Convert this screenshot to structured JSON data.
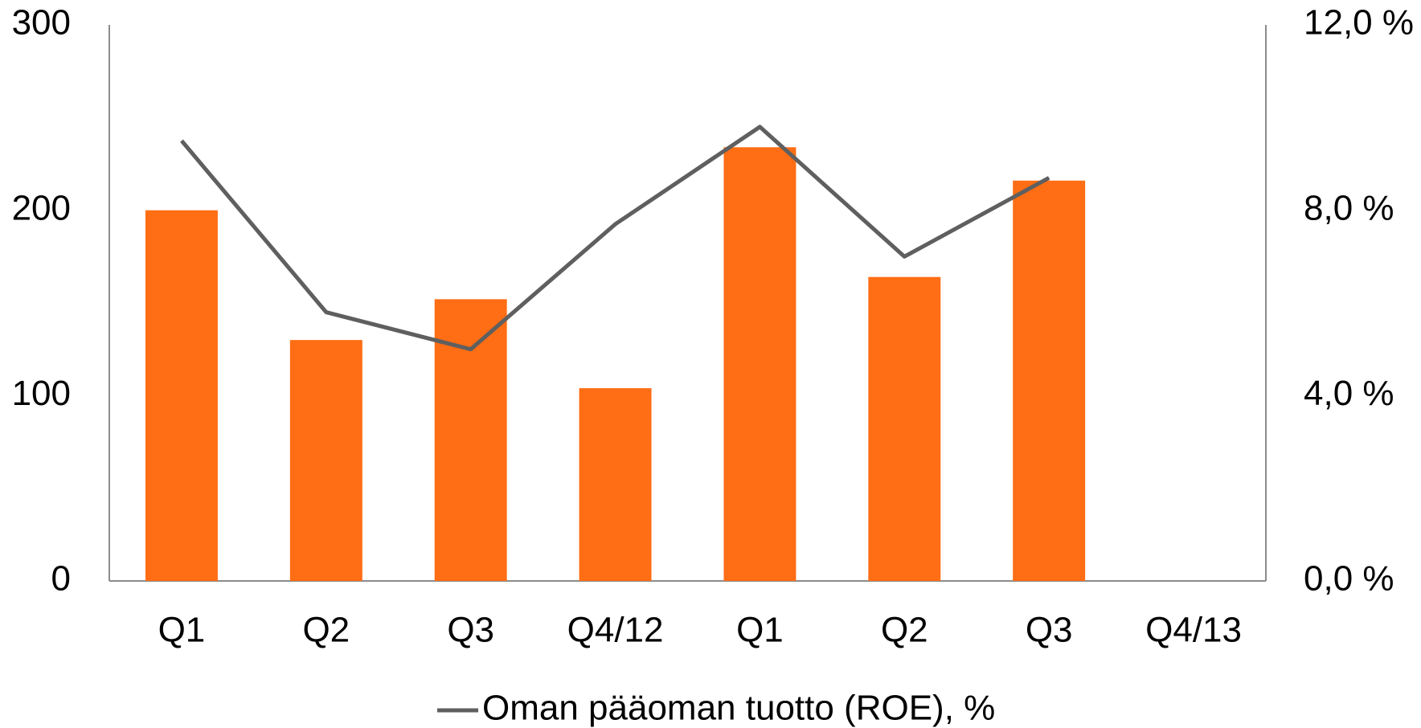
{
  "chart_data": {
    "type": "bar",
    "categories": [
      "Q1",
      "Q2",
      "Q3",
      "Q4/12",
      "Q1",
      "Q2",
      "Q3",
      "Q4/13"
    ],
    "series": [
      {
        "color": "#ff6d14",
        "values": [
          200,
          130,
          152,
          104,
          234,
          164,
          216,
          null
        ]
      },
      {
        "name": "Oman pääoman tuotto (ROE), %",
        "type": "line",
        "axis": "y2",
        "color": "#5f5f5f",
        "values": [
          9.5,
          5.8,
          5.0,
          7.7,
          9.8,
          7.0,
          8.7,
          null
        ]
      }
    ],
    "ylim": [
      0,
      300
    ],
    "yticks": [
      0,
      100,
      200,
      300
    ],
    "y2lim": [
      0,
      12
    ],
    "y2ticks": [
      {
        "value": 0,
        "label": "0,0 %"
      },
      {
        "value": 4,
        "label": "4,0 %"
      },
      {
        "value": 8,
        "label": "8,0 %"
      },
      {
        "value": 12,
        "label": "12,0 %"
      }
    ],
    "grid": false,
    "legend": "bottom"
  }
}
